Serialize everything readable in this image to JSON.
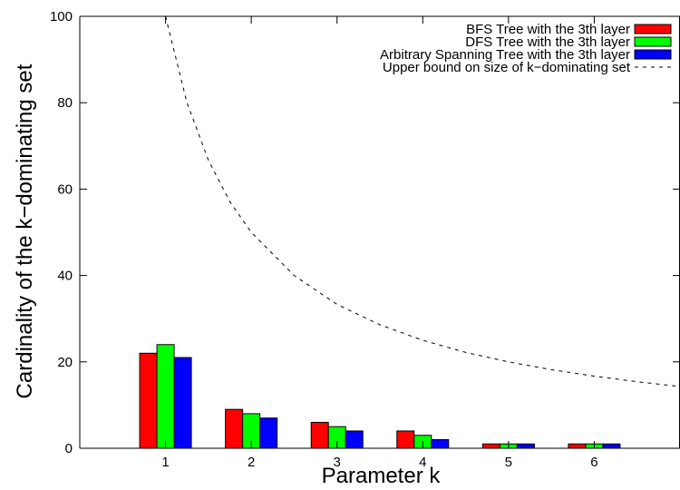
{
  "chart_data": {
    "type": "bar",
    "xlabel": "Parameter k",
    "ylabel": "Cardinality of the k−dominating set",
    "categories": [
      "1",
      "2",
      "3",
      "4",
      "5",
      "6"
    ],
    "x": [
      1,
      2,
      3,
      4,
      5,
      6
    ],
    "xlim": [
      0,
      7
    ],
    "ylim": [
      0,
      100
    ],
    "yticks": [
      "0",
      "20",
      "40",
      "60",
      "80",
      "100"
    ],
    "grid": false,
    "legend_position": "top-right",
    "series": [
      {
        "name": "BFS Tree with the 3th layer",
        "color": "#ff0000",
        "values": [
          22,
          9,
          6,
          4,
          1,
          1
        ]
      },
      {
        "name": "DFS Tree with the 3th layer",
        "color": "#00ff00",
        "values": [
          24,
          8,
          5,
          3,
          1,
          1
        ]
      },
      {
        "name": "Arbitrary Spanning Tree with the 3th layer",
        "color": "#0000ff",
        "values": [
          21,
          7,
          4,
          2,
          1,
          1
        ]
      }
    ],
    "curve": {
      "name": "Upper bound on size of k−dominating set",
      "style": "dashed",
      "color": "#000000",
      "x": [
        1,
        1.25,
        1.5,
        1.75,
        2,
        2.5,
        3,
        3.5,
        4,
        4.5,
        5,
        5.5,
        6,
        6.5,
        7
      ],
      "y": [
        100,
        80,
        66.7,
        57.1,
        50,
        40,
        33.3,
        28.6,
        25,
        22.2,
        20,
        18.2,
        16.7,
        15.4,
        14.3
      ]
    }
  }
}
